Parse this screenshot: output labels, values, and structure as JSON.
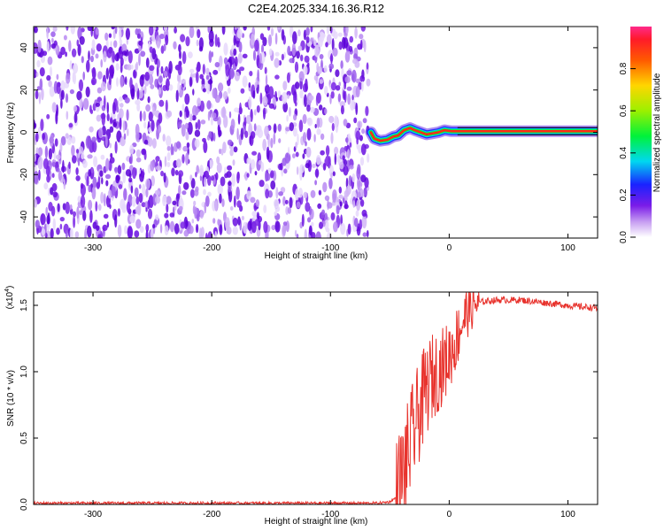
{
  "chart_data": [
    {
      "type": "heatmap",
      "title": "C2E4.2025.334.16.36.R12",
      "xlabel": "Height of straight line (km)",
      "ylabel": "Frequency (Hz)",
      "xlim": [
        -350,
        125
      ],
      "ylim": [
        -50,
        50
      ],
      "x_ticks": [
        -300,
        -200,
        -100,
        0,
        100
      ],
      "y_ticks": [
        -40,
        -20,
        0,
        20,
        40
      ],
      "noise_region_x": [
        -350,
        -68
      ],
      "signal_trace": [
        {
          "x": -66,
          "y": 0
        },
        {
          "x": -63,
          "y": -3
        },
        {
          "x": -58,
          "y": -4
        },
        {
          "x": -52,
          "y": -3.5
        },
        {
          "x": -47,
          "y": -2
        },
        {
          "x": -43,
          "y": -1.5
        },
        {
          "x": -38,
          "y": 1
        },
        {
          "x": -33,
          "y": 2
        },
        {
          "x": -29,
          "y": 1
        },
        {
          "x": -24,
          "y": 0
        },
        {
          "x": -19,
          "y": -1
        },
        {
          "x": -14,
          "y": -0.5
        },
        {
          "x": -9,
          "y": 0
        },
        {
          "x": -4,
          "y": 1
        },
        {
          "x": 2,
          "y": 0.5
        },
        {
          "x": 7,
          "y": 0.5
        },
        {
          "x": 125,
          "y": 0.5
        }
      ],
      "colorbar": {
        "label": "Normalized spectral amplitude",
        "range": [
          0,
          1
        ],
        "ticks": [
          "0.0",
          "0.2",
          "0.4",
          "0.6",
          "0.8"
        ],
        "tick_values": [
          0.0,
          0.2,
          0.4,
          0.6,
          0.8
        ]
      }
    },
    {
      "type": "line",
      "title": "",
      "xlabel": "Height of straight line (km)",
      "ylabel": "SNR (10 * v/v)",
      "multiplier_label": "(x10",
      "multiplier_exponent": "4",
      "xlim": [
        -350,
        125
      ],
      "ylim": [
        0,
        1.6
      ],
      "x_ticks": [
        -300,
        -200,
        -100,
        0,
        100
      ],
      "y_ticks": [
        "0.0",
        "0.5",
        "1.0",
        "1.5"
      ],
      "y_tick_values": [
        0,
        0.5,
        1.0,
        1.5
      ],
      "series": [
        {
          "name": "SNR",
          "color": "#e8332d",
          "x": [
            -350,
            -300,
            -250,
            -200,
            -150,
            -100,
            -60,
            -50,
            -45,
            -40,
            -35,
            -30,
            -25,
            -20,
            -15,
            -10,
            -5,
            0,
            5,
            10,
            15,
            20,
            25,
            30,
            40,
            50,
            60,
            70,
            80,
            90,
            100,
            110,
            125
          ],
          "values": [
            0.01,
            0.01,
            0.01,
            0.01,
            0.01,
            0.01,
            0.01,
            0.02,
            0.05,
            0.18,
            0.35,
            0.55,
            0.7,
            0.85,
            0.95,
            1.0,
            1.05,
            1.12,
            1.22,
            1.35,
            1.45,
            1.5,
            1.52,
            1.53,
            1.54,
            1.54,
            1.54,
            1.53,
            1.52,
            1.51,
            1.5,
            1.49,
            1.48
          ]
        }
      ]
    }
  ]
}
